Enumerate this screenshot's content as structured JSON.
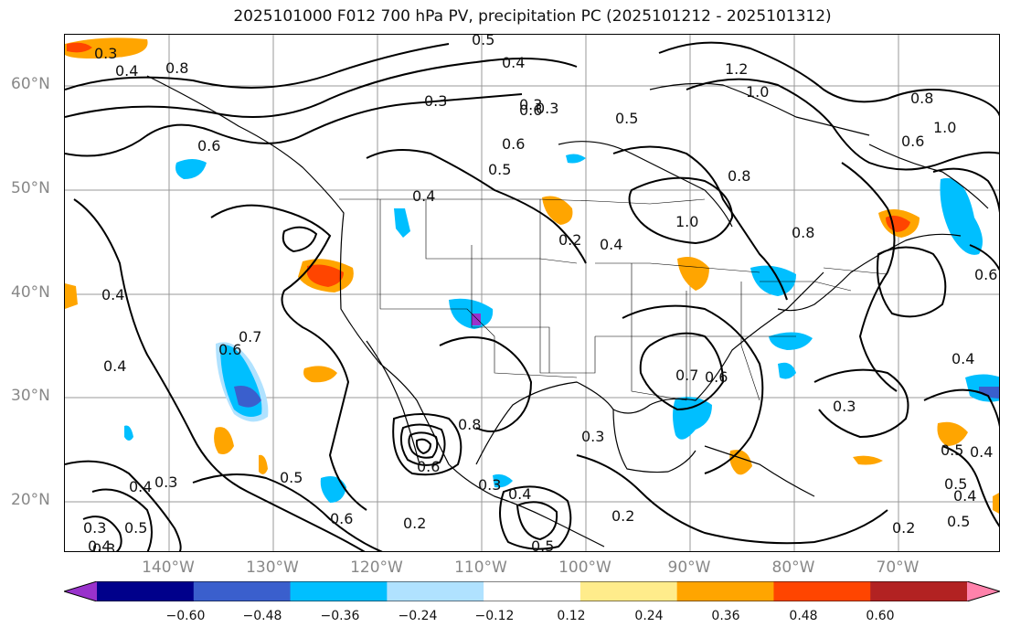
{
  "title": "2025101000 F012 700 hPa PV, precipitation PC (2025101212 - 2025101312)",
  "lat_labels": [
    "60°N",
    "50°N",
    "40°N",
    "30°N",
    "20°N"
  ],
  "lon_labels": [
    "140°W",
    "130°W",
    "120°W",
    "110°W",
    "100°W",
    "90°W",
    "80°W",
    "70°W"
  ],
  "colorbar": {
    "ticks": [
      "−0.60",
      "−0.48",
      "−0.36",
      "−0.24",
      "−0.12",
      "0.12",
      "0.24",
      "0.36",
      "0.48",
      "0.60"
    ],
    "colors": [
      "#9932cc",
      "#00008b",
      "#3a5fcd",
      "#00bfff",
      "#b0e2ff",
      "#ffffff",
      "#ffec8b",
      "#ffa500",
      "#ff4500",
      "#b22222",
      "#ff82ab"
    ]
  },
  "contour_labels": [
    "0.3",
    "0.4",
    "0.8",
    "0.6",
    "0.5",
    "0.4",
    "0.3",
    "0.6",
    "0.5",
    "1.2",
    "1.0",
    "0.8",
    "1.0",
    "0.6",
    "0.3",
    "0.5",
    "0.6",
    "0.8",
    "1.0",
    "0.8",
    "0.4",
    "0.2",
    "0.4",
    "0.4",
    "0.6",
    "0.7",
    "0.6",
    "0.4",
    "0.7",
    "0.6",
    "0.3",
    "0.4",
    "0.5",
    "0.4",
    "0.5",
    "0.3",
    "0.8",
    "0.6",
    "0.3",
    "0.3",
    "0.4",
    "0.5",
    "0.2",
    "0.6",
    "0.5",
    "0.4",
    "0.5",
    "0.3",
    "0.4",
    "0.2",
    "0.4",
    "0.5",
    "0.3",
    "0.3",
    "0.2"
  ]
}
